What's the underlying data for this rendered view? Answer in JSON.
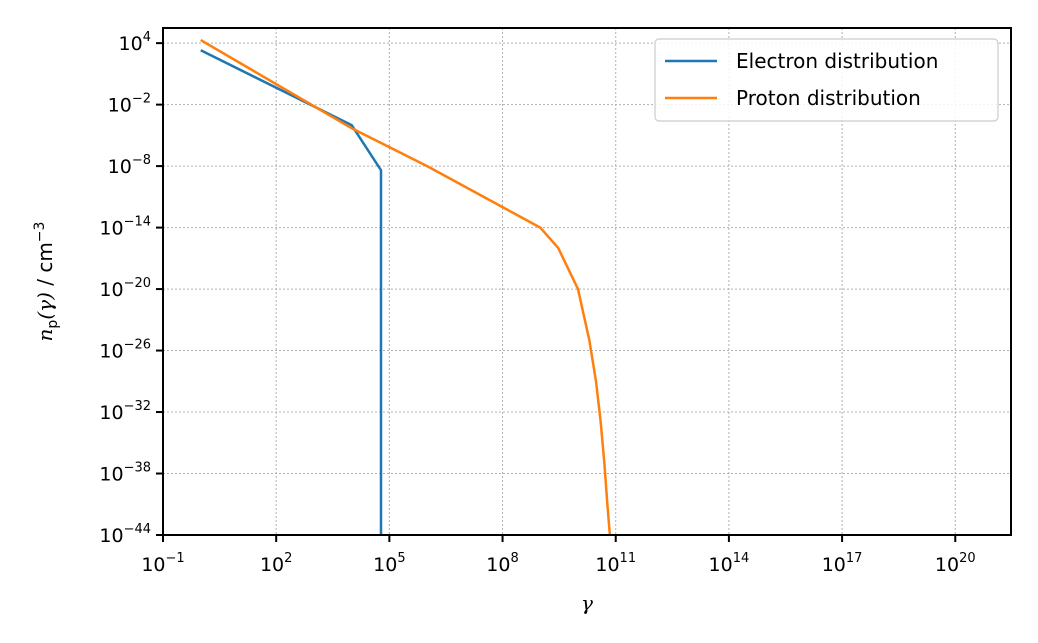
{
  "chart_data": {
    "type": "line",
    "x_scale": "log",
    "y_scale": "log",
    "xlim": [
      0.1,
      3e+21
    ],
    "ylim": [
      1e-44,
      300000.0
    ],
    "x_ticks": [
      {
        "value": 0.1,
        "base": "10",
        "exp": "−1"
      },
      {
        "value": 100.0,
        "base": "10",
        "exp": "2"
      },
      {
        "value": 100000.0,
        "base": "10",
        "exp": "5"
      },
      {
        "value": 100000000.0,
        "base": "10",
        "exp": "8"
      },
      {
        "value": 100000000000.0,
        "base": "10",
        "exp": "11"
      },
      {
        "value": 100000000000000.0,
        "base": "10",
        "exp": "14"
      },
      {
        "value": 1e+17,
        "base": "10",
        "exp": "17"
      },
      {
        "value": 1e+20,
        "base": "10",
        "exp": "20"
      }
    ],
    "y_ticks": [
      {
        "value": 10000.0,
        "base": "10",
        "exp": "4"
      },
      {
        "value": 0.01,
        "base": "10",
        "exp": "−2"
      },
      {
        "value": 1e-08,
        "base": "10",
        "exp": "−8"
      },
      {
        "value": 1e-14,
        "base": "10",
        "exp": "−14"
      },
      {
        "value": 1e-20,
        "base": "10",
        "exp": "−20"
      },
      {
        "value": 1e-26,
        "base": "10",
        "exp": "−26"
      },
      {
        "value": 1e-32,
        "base": "10",
        "exp": "−32"
      },
      {
        "value": 1e-38,
        "base": "10",
        "exp": "−38"
      },
      {
        "value": 1e-44,
        "base": "10",
        "exp": "−44"
      }
    ],
    "xlabel": "γ",
    "ylabel": {
      "n": "n",
      "sub": "p",
      "arg": "(γ)",
      "sep": " / ",
      "unit": "cm",
      "unit_exp": "−3"
    },
    "grid": true,
    "legend_position": "top-right",
    "series": [
      {
        "name": "Electron distribution",
        "color": "#1f77b4",
        "x": [
          1.0,
          10000.0,
          60000.0,
          60000.0
        ],
        "y": [
          2000.0,
          0.0001,
          4e-09,
          1e-44
        ]
      },
      {
        "name": "Proton distribution",
        "color": "#ff7f0e",
        "x": [
          1.0,
          100.0,
          10000.0,
          1000000.0,
          100000000.0,
          1000000000.0,
          3000000000.0,
          10000000000.0,
          20000000000.0,
          30000000000.0,
          40000000000.0,
          50000000000.0,
          60000000000.0,
          70000000000.0
        ],
        "y": [
          20000.0,
          1.0,
          5e-05,
          1e-08,
          1e-12,
          1e-14,
          1e-16,
          1e-20,
          1e-25,
          1e-29,
          1e-33,
          1e-37,
          1e-41,
          1e-44
        ]
      }
    ]
  }
}
